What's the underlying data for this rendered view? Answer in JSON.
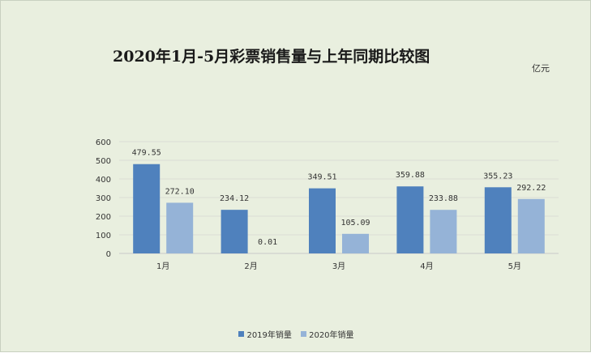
{
  "chart_data": {
    "type": "bar",
    "title": "2020年1月-5月彩票销售量与上年同期比较图",
    "unit": "亿元",
    "categories": [
      "1月",
      "2月",
      "3月",
      "4月",
      "5月"
    ],
    "series": [
      {
        "name": "2019年销量",
        "values": [
          479.55,
          234.12,
          349.51,
          359.88,
          355.23
        ],
        "labels": [
          "479.55",
          "234.12",
          "349.51",
          "359.88",
          "355.23"
        ],
        "color": "#4f81bd"
      },
      {
        "name": "2020年销量",
        "values": [
          272.1,
          0.01,
          105.09,
          233.88,
          292.22
        ],
        "labels": [
          "272.10",
          "0.01",
          "105.09",
          "233.88",
          "292.22"
        ],
        "color": "#95b3d7"
      }
    ],
    "yticks": [
      "0",
      "100",
      "200",
      "300",
      "400",
      "500",
      "600"
    ],
    "ylim": [
      0,
      600
    ],
    "grid": true,
    "legend": "bottom"
  }
}
